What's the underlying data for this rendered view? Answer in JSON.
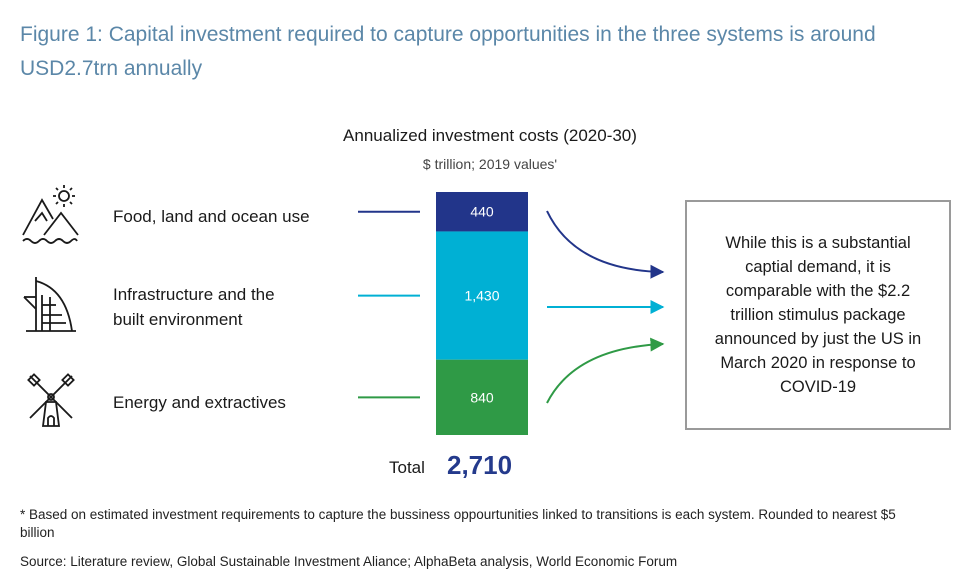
{
  "figure_title": "Figure 1: Capital investment required to capture opportunities in the three systems is around USD2.7trn annually",
  "chart_data": {
    "type": "bar",
    "stacked": true,
    "title": "Annualized investment costs (2020-30)",
    "subtitle": "$ trillion; 2019 values'",
    "categories": [
      "Food, land and ocean use",
      "Infrastructure and the built environment",
      "Energy and extractives"
    ],
    "values": [
      440,
      1430,
      840
    ],
    "value_labels": [
      "440",
      "1,430",
      "840"
    ],
    "colors": [
      "#22358a",
      "#00b0d4",
      "#2f9a46"
    ],
    "total_label": "Total",
    "total_value": "2,710"
  },
  "rows": [
    {
      "label_lines": [
        "Food, land and ocean use"
      ],
      "icon": "mountains-sun-icon"
    },
    {
      "label_lines": [
        "Infrastructure and the",
        "built environment"
      ],
      "icon": "building-icon"
    },
    {
      "label_lines": [
        "Energy and extractives"
      ],
      "icon": "windmill-icon"
    }
  ],
  "callout_text": "While this is a substantial captial demand, it is comparable with the $2.2 trillion stimulus package announced by just the US in March 2020 in response to COVID-19",
  "footnote": "* Based on estimated investment requirements to capture the bussiness oppourtunities linked to transitions is each system. Rounded to nearest $5 billion",
  "source": "Source: Literature review, Global Sustainable Investment Aliance; AlphaBeta analysis, World Economic Forum"
}
